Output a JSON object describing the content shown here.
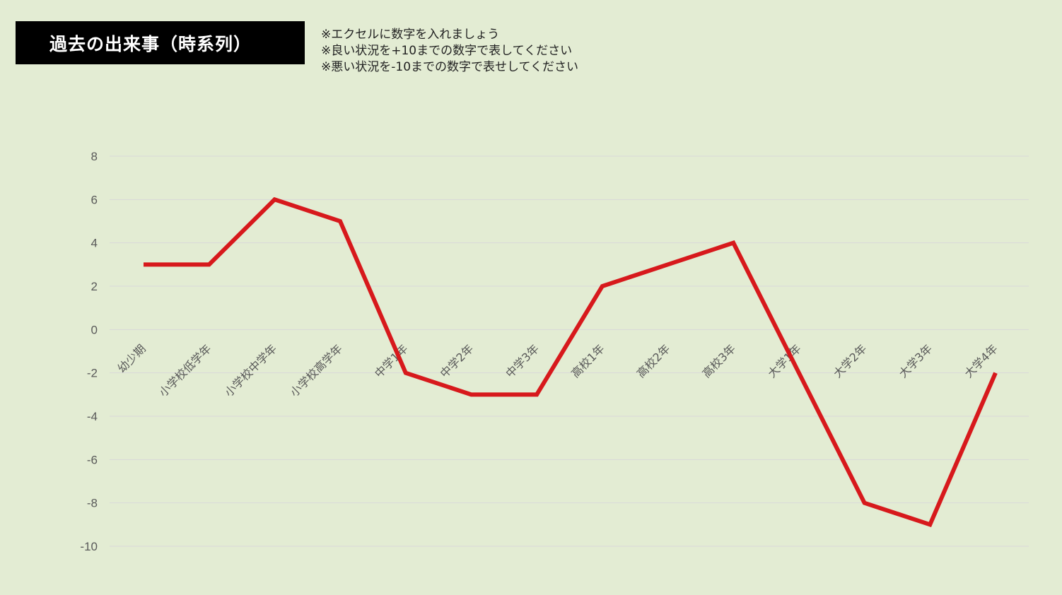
{
  "page": {
    "background": "#e3ecd3",
    "title": "過去の出来事（時系列）",
    "notes": [
      "※エクセルに数字を入れましょう",
      "※良い状況を+10までの数字で表してください",
      "※悪い状況を-10までの数字で表せしてください"
    ]
  },
  "chart_data": {
    "type": "line",
    "categories": [
      "幼少期",
      "小学校低学年",
      "小学校中学年",
      "小学校高学年",
      "中学1年",
      "中学2年",
      "中学3年",
      "高校1年",
      "高校2年",
      "高校3年",
      "大学1年",
      "大学2年",
      "大学3年",
      "大学4年"
    ],
    "series": [
      {
        "values": [
          3,
          3,
          6,
          5,
          -2,
          -3,
          -3,
          2,
          3,
          4,
          -2,
          -8,
          -9,
          -2
        ],
        "color": "#d7191c"
      }
    ],
    "ylim": [
      -10,
      8
    ],
    "yticks": [
      8,
      6,
      4,
      2,
      0,
      -2,
      -4,
      -6,
      -8,
      -10
    ],
    "grid": true,
    "gridline_color": "#d9d9d9"
  }
}
